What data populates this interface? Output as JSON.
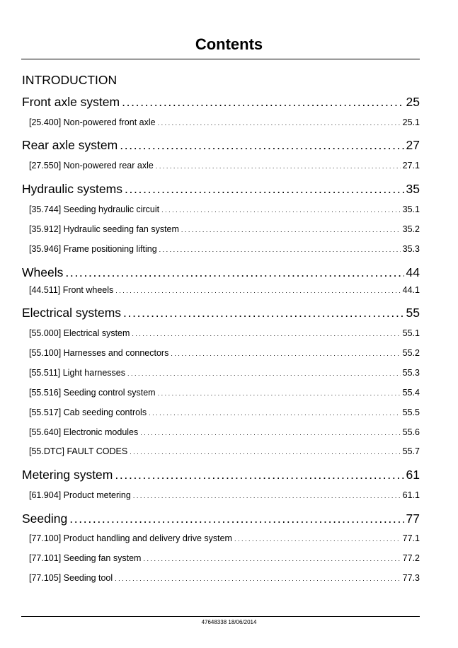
{
  "page": {
    "title": "Contents",
    "introduction": "INTRODUCTION",
    "footer": "47648338 18/06/2014"
  },
  "toc": [
    {
      "kind": "sec",
      "label": "Front axle system",
      "page": "25"
    },
    {
      "kind": "sub",
      "label": "[25.400] Non-powered front axle",
      "page": "25.1"
    },
    {
      "kind": "sec",
      "label": "Rear axle system",
      "page": "27"
    },
    {
      "kind": "sub",
      "label": "[27.550] Non-powered rear axle",
      "page": "27.1"
    },
    {
      "kind": "sec",
      "label": "Hydraulic systems",
      "page": "35"
    },
    {
      "kind": "sub",
      "label": "[35.744] Seeding hydraulic circuit",
      "page": "35.1"
    },
    {
      "kind": "sub",
      "label": "[35.912] Hydraulic seeding fan system",
      "page": "35.2"
    },
    {
      "kind": "sub",
      "label": "[35.946] Frame positioning lifting",
      "page": "35.3"
    },
    {
      "kind": "sec",
      "label": "Wheels",
      "page": "44"
    },
    {
      "kind": "sub",
      "label": "[44.511] Front wheels",
      "page": "44.1"
    },
    {
      "kind": "sec",
      "label": "Electrical systems",
      "page": "55"
    },
    {
      "kind": "sub",
      "label": "[55.000] Electrical system",
      "page": "55.1"
    },
    {
      "kind": "sub",
      "label": "[55.100] Harnesses and connectors",
      "page": "55.2"
    },
    {
      "kind": "sub",
      "label": "[55.511] Light harnesses",
      "page": "55.3"
    },
    {
      "kind": "sub",
      "label": "[55.516] Seeding control system",
      "page": "55.4"
    },
    {
      "kind": "sub",
      "label": "[55.517] Cab seeding controls",
      "page": "55.5"
    },
    {
      "kind": "sub",
      "label": "[55.640] Electronic modules",
      "page": "55.6"
    },
    {
      "kind": "sub",
      "label": "[55.DTC] FAULT CODES",
      "page": "55.7"
    },
    {
      "kind": "sec",
      "label": "Metering system",
      "page": "61"
    },
    {
      "kind": "sub",
      "label": "[61.904] Product metering",
      "page": "61.1"
    },
    {
      "kind": "sec",
      "label": "Seeding",
      "page": "77"
    },
    {
      "kind": "sub",
      "label": "[77.100] Product handling and delivery drive system",
      "page": "77.1"
    },
    {
      "kind": "sub",
      "label": "[77.101] Seeding fan system",
      "page": "77.2"
    },
    {
      "kind": "sub",
      "label": "[77.105] Seeding tool",
      "page": "77.3"
    }
  ]
}
